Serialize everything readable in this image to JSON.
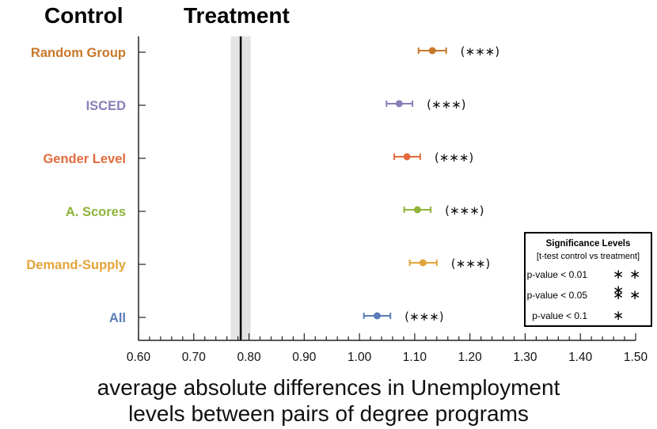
{
  "header": {
    "control_label": "Control",
    "treatment_label": "Treatment"
  },
  "chart_data": {
    "type": "scatter",
    "subtype": "horizontal point estimates with error bars",
    "categories": [
      "Random Group",
      "ISCED",
      "Gender Level",
      "A. Scores",
      "Demand-Supply",
      "All"
    ],
    "category_colors": [
      "#c8782a",
      "#8a7fb8",
      "#e16b3e",
      "#8fb43a",
      "#e2a43a",
      "#5a7db8"
    ],
    "values": [
      1.132,
      1.072,
      1.086,
      1.105,
      1.115,
      1.032
    ],
    "error_low": [
      1.107,
      1.049,
      1.063,
      1.081,
      1.091,
      1.008
    ],
    "error_high": [
      1.157,
      1.096,
      1.11,
      1.129,
      1.14,
      1.056
    ],
    "significance": [
      "(∗∗∗)",
      "(∗∗∗)",
      "(∗∗∗)",
      "(∗∗∗)",
      "(∗∗∗)",
      "(∗∗∗)"
    ],
    "treatment_line": 0.785,
    "treatment_band": [
      0.767,
      0.803
    ],
    "xlim": [
      0.6,
      1.5
    ],
    "xticks": [
      "0.60",
      "0.70",
      "0.80",
      "0.90",
      "1.00",
      "1.10",
      "1.20",
      "1.30",
      "1.40",
      "1.50"
    ],
    "xlabel_line1": "average absolute differences in Unemployment",
    "xlabel_line2": "levels between pairs of degree programs",
    "legend": {
      "title": "Significance Levels",
      "subtitle": "[t-test control vs treatment]",
      "entries": [
        {
          "label": "p-value < 0.01",
          "symbol": "∗ ∗ ∗"
        },
        {
          "label": "p-value < 0.05",
          "symbol": "∗ ∗"
        },
        {
          "label": "p-value < 0.1",
          "symbol": "∗"
        }
      ]
    }
  }
}
